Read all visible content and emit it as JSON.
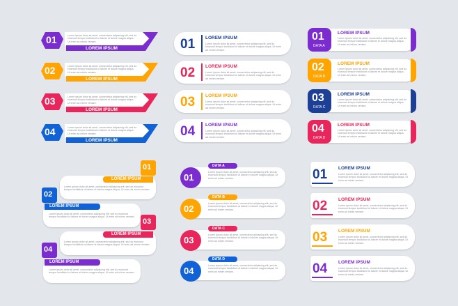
{
  "colors": {
    "purple": "#7b2ccf",
    "orange": "#ffa400",
    "red": "#e8265b",
    "blue": "#1162d6",
    "navy": "#1d3f95",
    "bg": "#e3e6ea"
  },
  "heading": "LOREM IPSUM",
  "body": "Lorem ipsum dolor sit amet, consectetur adipiscing elit, sed do eiusmod tempor incididunt ut labore et dolore magna aliqua. Ut enim ad minim veniam.",
  "numbers": [
    "01",
    "02",
    "03",
    "04"
  ],
  "data_labels": [
    "DATA A",
    "DATA B",
    "DATA C",
    "DATA D"
  ]
}
